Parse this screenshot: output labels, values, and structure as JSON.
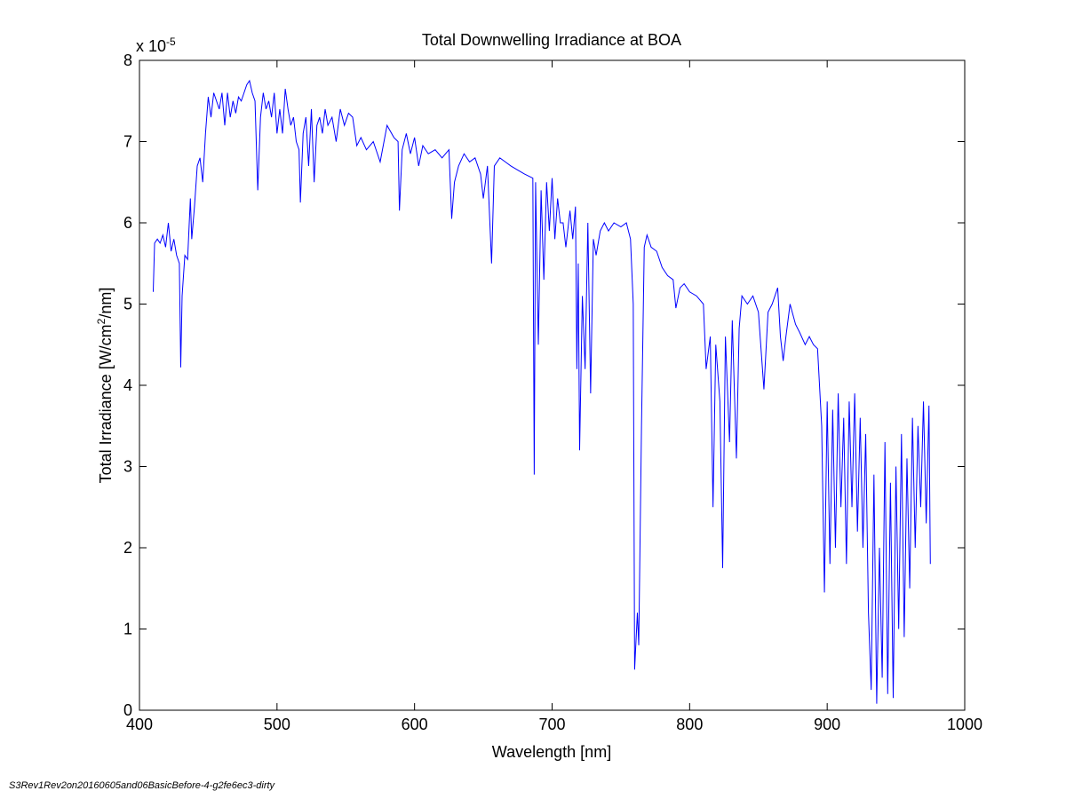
{
  "chart_data": {
    "type": "line",
    "title": "Total Downwelling Irradiance at BOA",
    "xlabel": "Wavelength [nm]",
    "ylabel_parts": [
      "Total Irradiance [W/cm",
      "2",
      "/nm]"
    ],
    "y_multiplier": [
      "x 10",
      "-5"
    ],
    "footer": "S3Rev1Rev2on20160605and06BasicBefore-4-g2fe6ec3-dirty",
    "xlim": [
      400,
      1000
    ],
    "xticks": [
      400,
      500,
      600,
      700,
      800,
      900,
      1000
    ],
    "ylim": [
      0,
      8
    ],
    "yticks": [
      0,
      1,
      2,
      3,
      4,
      5,
      6,
      7,
      8
    ],
    "grid": false,
    "x": [
      410,
      411,
      413,
      415,
      417,
      419,
      421,
      423,
      425,
      427,
      429,
      430,
      431,
      433,
      435,
      437,
      438,
      440,
      442,
      444,
      446,
      448,
      450,
      452,
      454,
      456,
      458,
      460,
      462,
      464,
      466,
      468,
      470,
      472,
      474,
      476,
      478,
      480,
      482,
      484,
      486,
      488,
      490,
      492,
      494,
      496,
      498,
      500,
      502,
      504,
      506,
      508,
      510,
      512,
      514,
      516,
      517,
      519,
      521,
      523,
      525,
      527,
      529,
      531,
      533,
      535,
      537,
      540,
      543,
      546,
      549,
      552,
      555,
      558,
      561,
      565,
      570,
      575,
      580,
      585,
      588,
      589,
      591,
      594,
      597,
      600,
      603,
      606,
      610,
      615,
      620,
      625,
      627,
      629,
      632,
      636,
      640,
      644,
      648,
      650,
      653,
      656,
      658,
      662,
      666,
      670,
      675,
      680,
      686,
      687,
      688,
      690,
      692,
      694,
      696,
      698,
      700,
      702,
      704,
      706,
      708,
      710,
      713,
      715,
      717,
      718,
      719,
      720,
      722,
      724,
      726,
      728,
      730,
      732,
      735,
      738,
      741,
      745,
      750,
      754,
      757,
      759,
      760,
      762,
      763,
      765,
      767,
      769,
      772,
      776,
      780,
      784,
      788,
      790,
      793,
      796,
      800,
      805,
      810,
      812,
      815,
      817,
      819,
      822,
      824,
      826,
      829,
      831,
      834,
      836,
      838,
      842,
      846,
      850,
      854,
      857,
      860,
      864,
      866,
      868,
      870,
      873,
      877,
      880,
      884,
      887,
      890,
      893,
      896,
      898,
      900,
      902,
      904,
      906,
      908,
      910,
      912,
      914,
      916,
      918,
      920,
      922,
      924,
      926,
      928,
      930,
      932,
      934,
      936,
      938,
      940,
      942,
      944,
      946,
      948,
      950,
      952,
      954,
      956,
      958,
      960,
      962,
      964,
      966,
      968,
      970,
      972,
      974,
      975
    ],
    "series": [
      {
        "name": "Total Irradiance",
        "color": "#0000ff",
        "values": [
          5.15,
          5.75,
          5.8,
          5.75,
          5.85,
          5.7,
          6.0,
          5.65,
          5.8,
          5.6,
          5.5,
          4.22,
          5.1,
          5.6,
          5.55,
          6.3,
          5.8,
          6.2,
          6.7,
          6.8,
          6.5,
          7.1,
          7.55,
          7.3,
          7.6,
          7.5,
          7.4,
          7.6,
          7.2,
          7.6,
          7.3,
          7.5,
          7.35,
          7.55,
          7.5,
          7.6,
          7.7,
          7.75,
          7.6,
          7.5,
          6.4,
          7.3,
          7.6,
          7.4,
          7.5,
          7.3,
          7.6,
          7.1,
          7.4,
          7.1,
          7.65,
          7.4,
          7.2,
          7.3,
          7.0,
          6.9,
          6.25,
          7.1,
          7.3,
          6.7,
          7.4,
          6.5,
          7.2,
          7.3,
          7.1,
          7.4,
          7.2,
          7.3,
          7.0,
          7.4,
          7.2,
          7.35,
          7.3,
          6.95,
          7.05,
          6.9,
          7.0,
          6.75,
          7.2,
          7.05,
          7.0,
          6.15,
          6.9,
          7.1,
          6.85,
          7.05,
          6.7,
          6.95,
          6.85,
          6.9,
          6.8,
          6.9,
          6.05,
          6.5,
          6.7,
          6.85,
          6.75,
          6.8,
          6.6,
          6.3,
          6.7,
          5.5,
          6.7,
          6.8,
          6.75,
          6.7,
          6.65,
          6.6,
          6.55,
          2.9,
          6.5,
          4.5,
          6.4,
          5.3,
          6.5,
          5.9,
          6.55,
          5.8,
          6.3,
          6.0,
          6.0,
          5.7,
          6.15,
          5.8,
          6.2,
          4.2,
          5.5,
          3.2,
          5.1,
          4.2,
          6.0,
          3.9,
          5.8,
          5.6,
          5.9,
          6.0,
          5.9,
          6.0,
          5.95,
          6.0,
          5.8,
          5.0,
          0.5,
          1.2,
          0.8,
          3.5,
          5.7,
          5.85,
          5.7,
          5.65,
          5.45,
          5.35,
          5.3,
          4.95,
          5.2,
          5.25,
          5.15,
          5.1,
          5.0,
          4.2,
          4.6,
          2.5,
          4.5,
          3.8,
          1.75,
          4.6,
          3.3,
          4.8,
          3.1,
          4.7,
          5.1,
          5.0,
          5.1,
          4.9,
          3.95,
          4.9,
          5.0,
          5.2,
          4.6,
          4.3,
          4.6,
          5.0,
          4.75,
          4.65,
          4.5,
          4.6,
          4.5,
          4.45,
          3.5,
          1.45,
          3.8,
          1.8,
          3.7,
          2.0,
          3.9,
          2.5,
          3.6,
          1.8,
          3.8,
          2.5,
          3.9,
          2.2,
          3.6,
          2.0,
          3.4,
          1.2,
          0.25,
          2.9,
          0.08,
          2.0,
          0.4,
          3.3,
          0.2,
          2.8,
          0.15,
          3.0,
          1.0,
          3.4,
          0.9,
          3.1,
          1.5,
          3.6,
          2.0,
          3.5,
          2.5,
          3.8,
          2.3,
          3.75,
          1.8
        ]
      }
    ]
  }
}
